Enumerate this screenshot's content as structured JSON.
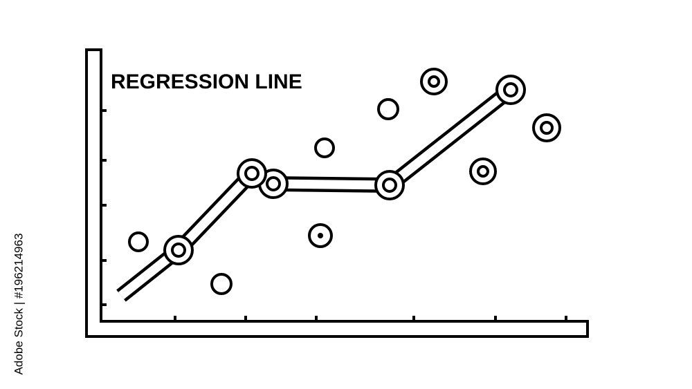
{
  "title": "REGRESSION LINE",
  "credit": "Adobe Stock | #196214963"
}
